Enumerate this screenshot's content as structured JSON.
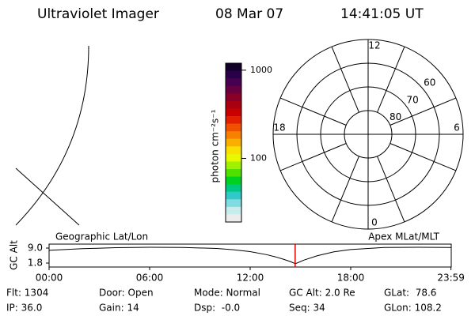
{
  "header": {
    "title": "Ultraviolet Imager",
    "date": "08 Mar 07",
    "time": "14:41:05 UT"
  },
  "colorbar": {
    "label": "photon cm⁻²s⁻¹",
    "log_scale": true,
    "lim": [
      19,
      1200
    ],
    "ticks": [
      100,
      1000
    ],
    "colors": [
      "#10002a",
      "#2a0048",
      "#480050",
      "#680040",
      "#880028",
      "#a80010",
      "#c80000",
      "#e02000",
      "#f05000",
      "#f88000",
      "#f8b000",
      "#f8e000",
      "#e8f800",
      "#a0f000",
      "#50e000",
      "#00d020",
      "#00c880",
      "#30c8c8",
      "#80dce0",
      "#c8ecec",
      "#ececec"
    ]
  },
  "polar": {
    "lat_lim": [
      50,
      90
    ],
    "lat_ticks": [
      60,
      70,
      80
    ],
    "mlt_ticks": [
      0,
      6,
      12,
      18
    ]
  },
  "gc_alt": {
    "ylabel": "GC Alt",
    "left_label": "Geographic Lat/Lon",
    "right_label": "Apex MLat/MLT",
    "xlim": [
      0,
      24
    ],
    "xticks": [
      {
        "value": 0,
        "label": "00:00"
      },
      {
        "value": 6,
        "label": "06:00"
      },
      {
        "value": 12,
        "label": "12:00"
      },
      {
        "value": 18,
        "label": "18:00"
      },
      {
        "value": 23.983,
        "label": "23:59"
      }
    ],
    "ylim": [
      -0.1,
      10.9
    ],
    "yticks": [
      {
        "value": 9.0,
        "label": "9.0"
      },
      {
        "value": 1.8,
        "label": "1.8"
      }
    ],
    "x": [
      0,
      2,
      4,
      6,
      8,
      10,
      11,
      12,
      13,
      13.5,
      14,
      14.4,
      14.7,
      15.2,
      16,
      17,
      18,
      20,
      22,
      24
    ],
    "values": [
      7.9,
      8.7,
      9.2,
      9.4,
      9.3,
      8.8,
      8.2,
      7.3,
      5.8,
      4.8,
      3.6,
      2.5,
      1.5,
      3.2,
      5.3,
      7.2,
      8.3,
      9.3,
      9.4,
      9.3
    ],
    "current_time": 14.685,
    "current_color": "#e00000"
  },
  "footer": {
    "items": [
      "Flt: 1304",
      "Door: Open",
      "Mode: Normal",
      "GC Alt: 2.0 Re",
      "GLat:  78.6",
      "IP: 36.0",
      "Gain: 14",
      "Dsp:  -0.0",
      "Seq: 34",
      "GLon: 108.2"
    ]
  }
}
